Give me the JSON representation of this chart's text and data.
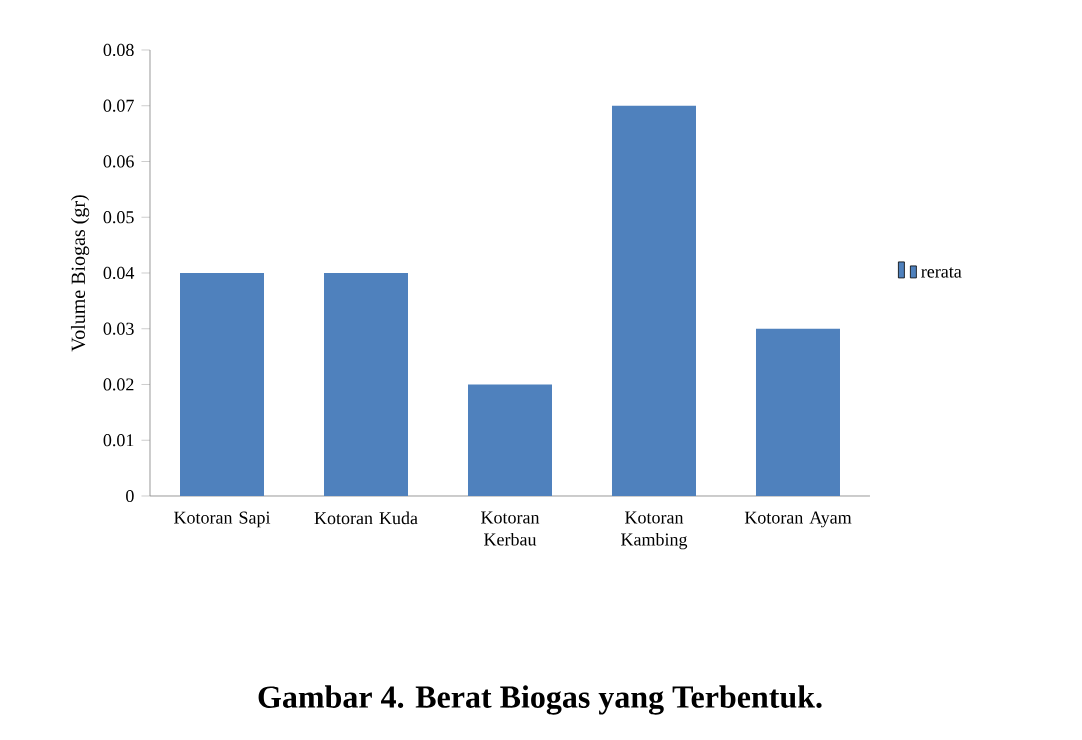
{
  "chart_data": {
    "type": "bar",
    "title": "Gambar 4. Berat Biogas yang Terbentuk.",
    "ylabel": "Volume Biogas (gr)",
    "categories": [
      "Kotoran Sapi",
      "Kotoran Kuda",
      "Kotoran Kerbau",
      "Kotoran Kambing",
      "Kotoran Ayam"
    ],
    "series": [
      {
        "name": "rerata",
        "color": "#4f81bd",
        "values": [
          0.04,
          0.04,
          0.02,
          0.07,
          0.03
        ]
      }
    ],
    "ylim": [
      0,
      0.08
    ],
    "yticks": [
      0,
      0.01,
      0.02,
      0.03,
      0.04,
      0.05,
      0.06,
      0.07,
      0.08
    ],
    "grid": false,
    "legend": "right"
  }
}
